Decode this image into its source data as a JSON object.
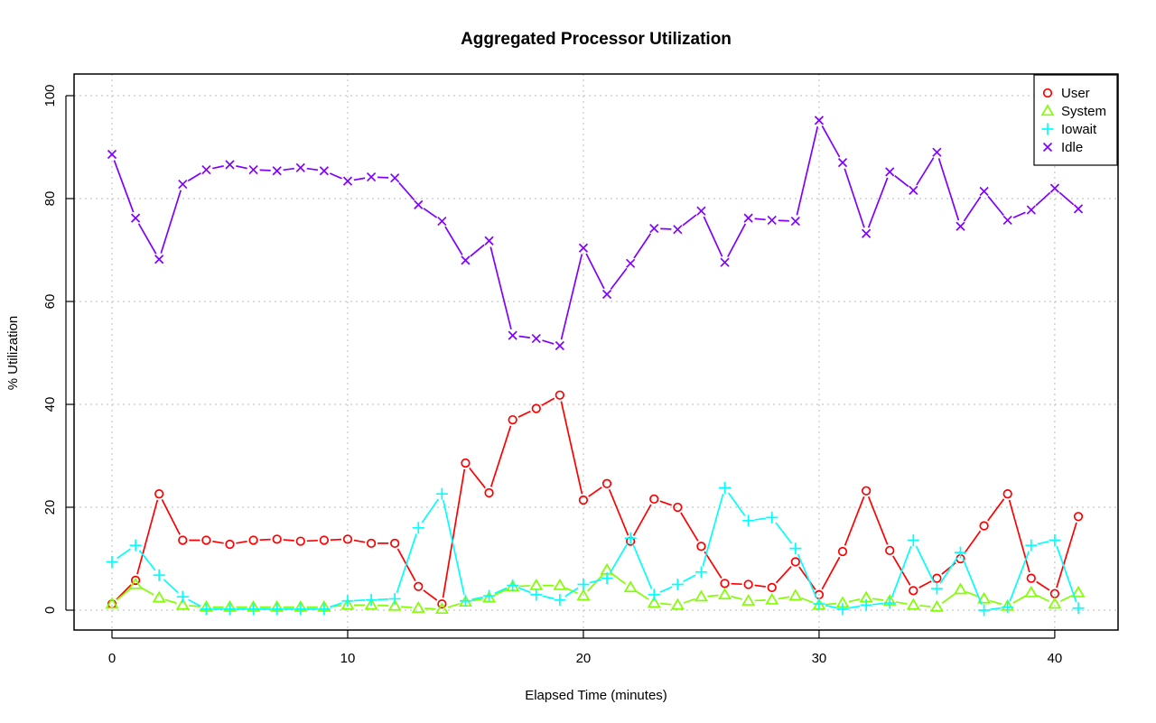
{
  "chart_data": {
    "type": "line",
    "title": "Aggregated Processor Utilization",
    "xlabel": "Elapsed Time (minutes)",
    "ylabel": "% Utilization",
    "xlim": [
      0,
      41
    ],
    "ylim": [
      0,
      100
    ],
    "x_ticks": [
      0,
      10,
      20,
      30,
      40
    ],
    "y_ticks": [
      0,
      20,
      40,
      60,
      80,
      100
    ],
    "grid": true,
    "legend_position": "top-right",
    "x": [
      0,
      1,
      2,
      3,
      4,
      5,
      6,
      7,
      8,
      9,
      10,
      11,
      12,
      13,
      14,
      15,
      16,
      17,
      18,
      19,
      20,
      21,
      22,
      23,
      24,
      25,
      26,
      27,
      28,
      29,
      30,
      31,
      32,
      33,
      34,
      35,
      36,
      37,
      38,
      39,
      40,
      41
    ],
    "series": [
      {
        "name": "User",
        "color": "#ff0000",
        "marker": "circle",
        "values": [
          1.2,
          5.8,
          22.6,
          13.6,
          13.6,
          12.8,
          13.6,
          13.8,
          13.4,
          13.6,
          13.8,
          13.0,
          13.0,
          4.6,
          1.2,
          28.6,
          22.8,
          37.0,
          39.2,
          41.8,
          21.4,
          24.6,
          13.4,
          21.6,
          20.0,
          12.4,
          5.2,
          5.0,
          4.4,
          9.4,
          3.0,
          11.4,
          23.2,
          11.6,
          3.8,
          6.2,
          10.0,
          16.4,
          22.6,
          6.2,
          3.2,
          18.2
        ]
      },
      {
        "name": "System",
        "color": "#80ff00",
        "marker": "triangle",
        "values": [
          1.2,
          5.0,
          2.4,
          1.0,
          0.6,
          0.6,
          0.6,
          0.6,
          0.6,
          0.6,
          1.0,
          1.0,
          0.8,
          0.4,
          0.2,
          1.6,
          2.4,
          4.6,
          4.8,
          4.8,
          2.8,
          7.8,
          4.4,
          1.4,
          1.0,
          2.6,
          3.0,
          1.8,
          2.0,
          2.8,
          1.0,
          1.4,
          2.4,
          1.8,
          1.0,
          0.6,
          4.0,
          2.2,
          0.8,
          3.4,
          1.2,
          3.4
        ]
      },
      {
        "name": "Iowait",
        "color": "#00ffff",
        "marker": "plus",
        "values": [
          9.4,
          12.6,
          6.8,
          2.6,
          0.2,
          0.2,
          0.2,
          0.2,
          0.2,
          0.2,
          1.8,
          2.0,
          2.2,
          16.0,
          22.6,
          1.8,
          2.8,
          4.8,
          3.0,
          2.0,
          5.0,
          6.2,
          14.0,
          3.0,
          5.0,
          7.4,
          23.8,
          17.4,
          18.0,
          12.0,
          1.2,
          0.2,
          1.0,
          1.4,
          13.6,
          4.2,
          11.2,
          0.0,
          0.6,
          12.6,
          13.6,
          0.4
        ]
      },
      {
        "name": "Idle",
        "color": "#8000ff",
        "marker": "x",
        "values": [
          88.6,
          76.2,
          68.2,
          82.8,
          85.6,
          86.6,
          85.6,
          85.4,
          86.0,
          85.4,
          83.4,
          84.2,
          84.0,
          78.8,
          75.6,
          68.0,
          71.8,
          53.4,
          52.8,
          51.4,
          70.4,
          61.4,
          67.4,
          74.2,
          74.0,
          77.6,
          67.6,
          76.2,
          75.8,
          75.6,
          95.2,
          87.0,
          73.2,
          85.2,
          81.6,
          89.0,
          74.6,
          81.4,
          75.8,
          77.8,
          82.0,
          78.0
        ]
      }
    ]
  }
}
